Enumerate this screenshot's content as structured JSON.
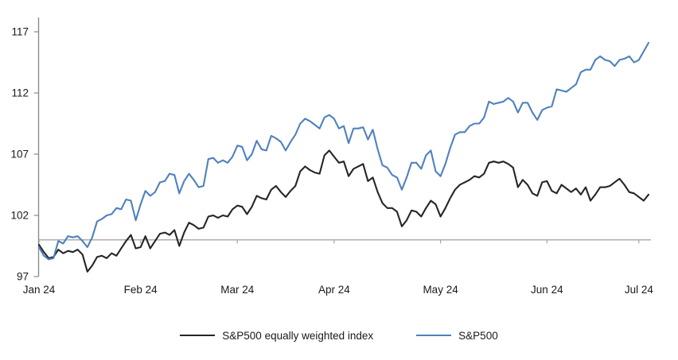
{
  "chart_data": {
    "type": "line",
    "title": "",
    "xlabel": "",
    "ylabel": "",
    "grid": false,
    "legend_position": "bottom-center",
    "y_axis": {
      "min": 97,
      "max": 118.2,
      "tick_values": [
        117,
        112,
        107,
        102,
        97
      ]
    },
    "y_tick_labels": [
      "117",
      "112",
      "107",
      "102",
      "97"
    ],
    "x_tick_labels": [
      "Jan 24",
      "Feb 24",
      "Mar 24",
      "Apr 24",
      "May 24",
      "Jun 24",
      "Jul 24"
    ],
    "x_tick_indices": [
      0,
      21,
      41,
      61,
      83,
      105,
      124
    ],
    "baseline_value": 100,
    "series": [
      {
        "name": "S&P500 equally weighted index",
        "color": "#262626",
        "values": [
          99.6,
          99.0,
          98.5,
          98.6,
          99.2,
          98.9,
          99.1,
          99.0,
          99.2,
          98.8,
          97.4,
          97.9,
          98.6,
          98.7,
          98.5,
          98.9,
          98.7,
          99.3,
          99.9,
          100.4,
          99.3,
          99.4,
          100.3,
          99.3,
          99.9,
          100.5,
          100.6,
          100.4,
          100.8,
          99.5,
          100.6,
          101.4,
          101.2,
          100.9,
          101.0,
          101.9,
          102.0,
          101.8,
          102.0,
          101.9,
          102.5,
          102.8,
          102.7,
          102.1,
          102.7,
          103.6,
          103.4,
          103.3,
          104.1,
          104.4,
          103.9,
          103.5,
          104.0,
          104.4,
          105.6,
          106.0,
          105.7,
          105.5,
          105.4,
          106.9,
          107.3,
          106.8,
          106.3,
          106.4,
          105.2,
          105.8,
          106.0,
          106.2,
          104.8,
          105.1,
          103.9,
          103.0,
          102.6,
          102.6,
          102.3,
          101.1,
          101.6,
          102.4,
          102.3,
          101.9,
          102.6,
          103.2,
          102.9,
          101.9,
          102.6,
          103.4,
          104.1,
          104.5,
          104.7,
          104.9,
          105.2,
          105.1,
          105.4,
          106.3,
          106.4,
          106.3,
          106.4,
          106.2,
          105.9,
          104.3,
          104.9,
          104.5,
          103.8,
          103.6,
          104.7,
          104.8,
          104.0,
          103.8,
          104.5,
          104.2,
          103.9,
          104.2,
          103.7,
          104.3,
          103.2,
          103.7,
          104.3,
          104.3,
          104.4,
          104.7,
          105.0,
          104.5,
          103.9,
          103.8,
          103.5,
          103.2,
          103.7
        ]
      },
      {
        "name": "S&P500",
        "color": "#4f81bd",
        "values": [
          99.4,
          98.7,
          98.4,
          98.5,
          99.9,
          99.7,
          100.3,
          100.2,
          100.3,
          99.9,
          99.4,
          100.2,
          101.5,
          101.7,
          102.0,
          102.1,
          102.6,
          102.5,
          103.3,
          103.2,
          101.6,
          102.9,
          104.0,
          103.6,
          103.9,
          104.7,
          104.8,
          105.4,
          105.3,
          103.8,
          104.8,
          105.4,
          104.9,
          104.3,
          104.4,
          106.6,
          106.7,
          106.3,
          106.5,
          106.3,
          106.8,
          107.7,
          107.6,
          106.5,
          107.0,
          108.1,
          107.4,
          107.3,
          108.5,
          108.3,
          108.0,
          107.3,
          108.0,
          108.6,
          109.5,
          109.9,
          109.7,
          109.4,
          109.1,
          110.0,
          110.2,
          109.9,
          109.1,
          109.3,
          107.9,
          109.1,
          109.1,
          109.2,
          108.2,
          109.0,
          107.4,
          106.1,
          105.9,
          105.3,
          105.1,
          104.1,
          105.1,
          106.3,
          106.3,
          105.8,
          106.9,
          107.3,
          105.6,
          105.2,
          106.2,
          107.5,
          108.6,
          108.8,
          108.8,
          109.3,
          109.5,
          109.5,
          110.0,
          111.3,
          111.1,
          111.2,
          111.3,
          111.6,
          111.3,
          110.4,
          111.2,
          111.2,
          110.4,
          109.8,
          110.6,
          110.8,
          110.9,
          112.3,
          112.2,
          112.1,
          112.4,
          112.7,
          113.7,
          113.9,
          113.9,
          114.7,
          115.0,
          114.7,
          114.6,
          114.2,
          114.7,
          114.8,
          115.0,
          114.5,
          114.7,
          115.4,
          116.1
        ]
      }
    ],
    "colors": {
      "axis_line": "#8c8c8c",
      "baseline": "#a6a6a6",
      "tick_text": "#1a1a1a"
    }
  },
  "legend": {
    "items": [
      {
        "label": "S&P500 equally weighted index"
      },
      {
        "label": "S&P500"
      }
    ]
  }
}
